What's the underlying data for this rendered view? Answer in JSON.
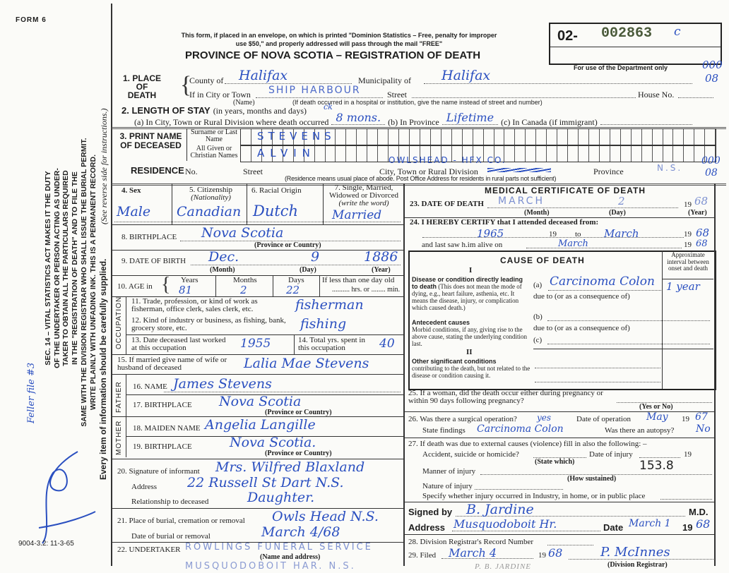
{
  "form_number": "FORM 6",
  "form_code": "9004-3.2: 11-3-65",
  "side_notice": {
    "lines": [
      "SEC. 14 – VITAL STATISTICS ACT MAKES IT THE DUTY",
      "OF THE UNDERTAKER OR PERSON ACTING AS UNDER-",
      "TAKER TO OBTAIN ALL THE PARTICULARS REQUIRED",
      "IN THE \"REGISTRATION OF DEATH\" AND TO FILE THE",
      "SAME WITH THE DIVISION REGISTRAR WHO SHALL ISSUE THE BURIAL PERMIT.",
      "WRITE PLAINLY WITH UNFADING INK. THIS IS A PERMANENT RECORD."
    ],
    "every_item": "Every item of information should be carefully supplied.",
    "see_reverse": "(See reverse side for instructions.)"
  },
  "header": {
    "postal_note_1": "This form, if placed in an envelope, on which is printed \"Dominion Statistics – Free, penalty for improper",
    "postal_note_2": "use $50,\" and properly addressed will pass through the mail \"FREE\"",
    "title": "PROVINCE OF NOVA SCOTIA – REGISTRATION OF DEATH",
    "reg_prefix": "02-",
    "reg_number": "002863",
    "reg_mark": "c",
    "dept_only": "For use of the Department only",
    "dept_code_1": "000",
    "dept_code_2": "08"
  },
  "place_of_death": {
    "label": "1. PLACE OF DEATH",
    "county_label": "County of",
    "county": "Halifax",
    "municipality_label": "Municipality of",
    "municipality": "Halifax",
    "city_label": "If in City or Town",
    "city": "SHIP HARBOUR",
    "name_caption": "(Name)",
    "street_label": "Street",
    "house_label": "House No.",
    "hospital_note": "(If death occurred in a hospital or institution, give the name instead of street and number)"
  },
  "length_of_stay": {
    "label": "2. LENGTH OF STAY",
    "sub": "(in years, months and days)",
    "a_label": "(a) In City, Town or Rural Division where death occurred",
    "a_value": "8 mons.",
    "a_mark": "ck",
    "b_label": "(b) In Province",
    "b_value": "Lifetime",
    "c_label": "(c) In Canada (if immigrant)"
  },
  "name": {
    "label": "3. PRINT NAME OF DECEASED",
    "surname_label": "Surname or Last Name",
    "surname": "STEVENS",
    "given_label": "All Given or Christian Names",
    "given": "ALVIN"
  },
  "residence": {
    "label": "RESIDENCE",
    "no_label": "No.",
    "street_label": "Street",
    "city_label": "City, Town or Rural Division",
    "city": "OWLSHEAD - HFX CO.",
    "province_label": "Province",
    "province": "N.S.",
    "note": "(Residence means usual place of abode. Post Office Address for residents in rural parts not sufficient)",
    "code_1": "000",
    "code_2": "08"
  },
  "personal": {
    "sex_label": "4. Sex",
    "sex": "Male",
    "citizenship_label": "5. Citizenship",
    "citizenship_sub": "(Nationality)",
    "citizenship": "Canadian",
    "racial_label": "6. Racial Origin",
    "racial": "Dutch",
    "marital_label": "7. Single, Married, Widowed or Divorced",
    "marital_sub": "(write the word)",
    "marital": "Married",
    "birthplace_label": "8. BIRTHPLACE",
    "birthplace": "Nova Scotia",
    "province_caption": "(Province or Country)",
    "dob_label": "9. DATE OF BIRTH",
    "dob_month": "Dec.",
    "dob_day": "9",
    "dob_year": "1886",
    "month_caption": "(Month)",
    "day_caption": "(Day)",
    "year_caption": "(Year)",
    "age_label": "10. AGE in",
    "years_label": "Years",
    "months_label": "Months",
    "days_label": "Days",
    "age_years": "81",
    "age_months": "2",
    "age_days": "22",
    "less_than_day": "If less than one day old",
    "hrs": "hrs. or",
    "min": "min."
  },
  "occupation": {
    "side": "OCCUPATION",
    "trade_label": "11. Trade, profession, or kind of work as fisherman, office clerk, sales clerk, etc.",
    "trade": "fisherman",
    "industry_label": "12. Kind of industry or business, as fishing, bank, grocery store, etc.",
    "industry": "fishing",
    "last_worked_label": "13. Date deceased last worked at this occupation",
    "last_worked": "1955",
    "total_years_label": "14. Total yrs. spent in this occupation",
    "total_years": "40"
  },
  "spouse": {
    "label": "15. If married give name of wife or husband of deceased",
    "value": "Lalia Mae Stevens"
  },
  "father": {
    "side": "FATHER",
    "name_label": "16. NAME",
    "name": "James Stevens",
    "birthplace_label": "17. BIRTHPLACE",
    "birthplace": "Nova Scotia"
  },
  "mother": {
    "side": "MOTHER",
    "maiden_label": "18. MAIDEN NAME",
    "maiden": "Angelia Langille",
    "birthplace_label": "19. BIRTHPLACE",
    "birthplace": "Nova Scotia."
  },
  "informant": {
    "signature_label": "20. Signature of informant",
    "signature": "Mrs. Wilfred Blaxland",
    "address_label": "Address",
    "address": "22 Russell St Dart N.S.",
    "relationship_label": "Relationship to deceased",
    "relationship": "Daughter."
  },
  "burial": {
    "place_label": "21. Place of burial, cremation or removal",
    "place": "Owls Head N.S.",
    "date_label": "Date of burial or removal",
    "date": "March 4/68"
  },
  "undertaker": {
    "label": "22. UNDERTAKER",
    "name": "ROWLINGS FUNERAL SERVICE",
    "address": "MUSQUODOBOIT HAR. N.S.",
    "caption": "(Name and address)"
  },
  "medical": {
    "title": "MEDICAL CERTIFICATE OF DEATH",
    "dod_label": "23. DATE OF DEATH",
    "dod_month": "MARCH",
    "dod_day": "2",
    "dod_year": "68",
    "nineteen": "19",
    "certify_label": "24. I HEREBY CERTIFY that I attended deceased from:",
    "from": "1965",
    "to_label": "to",
    "to": "March",
    "to_year": "68",
    "last_saw_label": "and last saw h.im alive on",
    "last_saw": "March",
    "last_saw_year": "68",
    "cause_title": "CAUSE OF DEATH",
    "interval_label": "Approximate interval between onset and death",
    "part_1": "I",
    "part_2": "II",
    "direct_label": "Disease or condition directly leading to death",
    "direct_note": "(This does not mean the mode of dying, e.g., heart failure, asthenia, etc. It means the disease, injury, or complication which caused death.)",
    "a_label": "(a)",
    "a_value": "Carcinoma Colon",
    "a_interval": "1 year",
    "due_to": "due to (or as a consequence of)",
    "antecedent_label": "Antecedent causes",
    "antecedent_note": "Morbid conditions, if any, giving rise to the above cause, stating the underlying condition last.",
    "b_label": "(b)",
    "c_label": "(c)",
    "other_label": "Other significant conditions",
    "other_note": "contributing to the death, but not related to the disease or condition causing it.",
    "pregnancy_label": "25. If a woman, did the death occur either during pregnancy or within 90 days following pregnancy?",
    "yes_no": "(Yes or No)",
    "operation_label": "26. Was there a surgical operation?",
    "operation": "yes",
    "op_date_label": "Date of operation",
    "op_date": "May",
    "op_year": "67",
    "findings_label": "State findings",
    "findings": "Carcinoma Colon",
    "autopsy_label": "Was there an autopsy?",
    "autopsy": "No",
    "external_label": "27. If death was due to external causes (violence) fill in also the following: –",
    "accident_label": "Accident, suicide or homicide?",
    "state_which": "(State which)",
    "injury_date_label": "Date of injury",
    "manner_label": "Manner of injury",
    "how_sustained": "(How sustained)",
    "code": "153.8",
    "nature_label": "Nature of injury",
    "where_label": "Specify whether injury occurred in Industry, in home, or in public place",
    "signed_label": "Signed by",
    "signed": "B. Jardine",
    "md": "M.D.",
    "address_label": "Address",
    "address": "Musquodoboit Hr.",
    "date_label": "Date",
    "date": "March 1",
    "date_year": "68"
  },
  "registrar": {
    "record_label": "28. Division Registrar's Record Number",
    "filed_label": "29. Filed",
    "filed": "March 4",
    "filed_year": "68",
    "nineteen": "19",
    "signature": "P. McInnes",
    "caption": "(Division Registrar)",
    "stamp": "P. B. JARDINE"
  },
  "margin": {
    "initials": "ef",
    "note": "Feller file #3"
  }
}
